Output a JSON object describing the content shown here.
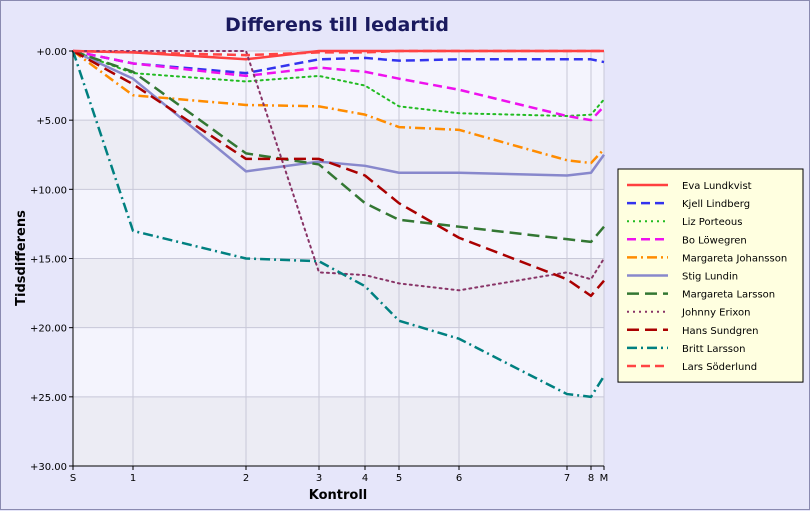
{
  "chart_data": {
    "type": "line",
    "title": "Differens till ledartid",
    "xlabel": "Kontroll",
    "ylabel": "Tidsdifferens",
    "x_ticks": [
      {
        "label": "S",
        "x": 0
      },
      {
        "label": "1",
        "x": 1
      },
      {
        "label": "2",
        "x": 2
      },
      {
        "label": "3",
        "x": 3
      },
      {
        "label": "4",
        "x": 4
      },
      {
        "label": "5",
        "x": 5
      },
      {
        "label": "6",
        "x": 6
      },
      {
        "label": "7",
        "x": 7
      },
      {
        "label": "8",
        "x": 8
      },
      {
        "label": "M",
        "x": 9
      }
    ],
    "y_ticks": [
      {
        "label": "+0.00",
        "value": 0
      },
      {
        "label": "+5.00",
        "value": 5
      },
      {
        "label": "+10.00",
        "value": 10
      },
      {
        "label": "+15.00",
        "value": 15
      },
      {
        "label": "+20.00",
        "value": 20
      },
      {
        "label": "+25.00",
        "value": 25
      },
      {
        "label": "+30.00",
        "value": 30
      }
    ],
    "ylim": [
      0,
      30
    ],
    "grid": true,
    "legend_position": "right",
    "series": [
      {
        "name": "Eva Lundkvist",
        "color": "#ff4040",
        "dash": "solid",
        "values": [
          0,
          0.1,
          0.6,
          0,
          0,
          0,
          0,
          0,
          0,
          0
        ]
      },
      {
        "name": "Kjell Lindberg",
        "color": "#3333ee",
        "dash": "dash",
        "values": [
          0,
          0.9,
          1.6,
          0.6,
          0.5,
          0.7,
          0.6,
          0.6,
          0.6,
          0.8
        ]
      },
      {
        "name": "Liz Porteous",
        "color": "#22bb22",
        "dash": "dot",
        "values": [
          0,
          1.6,
          2.2,
          1.8,
          2.5,
          4.0,
          4.5,
          4.7,
          4.6,
          3.5
        ]
      },
      {
        "name": "Bo Löwegren",
        "color": "#ee11ee",
        "dash": "dash",
        "values": [
          0,
          0.9,
          1.8,
          1.2,
          1.5,
          2.0,
          2.8,
          4.7,
          5.0,
          4.0
        ]
      },
      {
        "name": "Margareta Johansson",
        "color": "#ff8c00",
        "dash": "dashdot",
        "values": [
          0,
          3.2,
          3.9,
          4.0,
          4.6,
          5.5,
          5.7,
          7.9,
          8.1,
          7.1
        ]
      },
      {
        "name": "Stig Lundin",
        "color": "#8888cc",
        "dash": "solid",
        "values": [
          0,
          2.0,
          8.7,
          8.0,
          8.3,
          8.8,
          8.8,
          9.0,
          8.8,
          7.5
        ]
      },
      {
        "name": "Margareta Larsson",
        "color": "#337733",
        "dash": "longdash",
        "values": [
          0,
          1.5,
          7.4,
          8.2,
          11.0,
          12.2,
          12.7,
          13.6,
          13.8,
          12.7
        ]
      },
      {
        "name": "Johnny Erixon",
        "color": "#883366",
        "dash": "dot",
        "values": [
          0,
          0,
          0,
          16.0,
          16.2,
          16.8,
          17.3,
          16.0,
          16.5,
          15.0
        ]
      },
      {
        "name": "Hans Sundgren",
        "color": "#aa0000",
        "dash": "longdash",
        "values": [
          0,
          2.4,
          7.8,
          7.8,
          9.0,
          11.0,
          13.5,
          16.5,
          17.7,
          16.6
        ]
      },
      {
        "name": "Britt Larsson",
        "color": "#008080",
        "dash": "dashdot",
        "values": [
          0,
          13.0,
          15.0,
          15.2,
          17.0,
          19.5,
          20.8,
          24.8,
          25.0,
          23.5
        ]
      },
      {
        "name": "Lars Söderlund",
        "color": "#ff4444",
        "dash": "dash",
        "values": [
          0,
          0.1,
          0.3,
          0.1,
          0.1,
          0,
          0,
          0,
          0,
          0
        ]
      }
    ]
  }
}
